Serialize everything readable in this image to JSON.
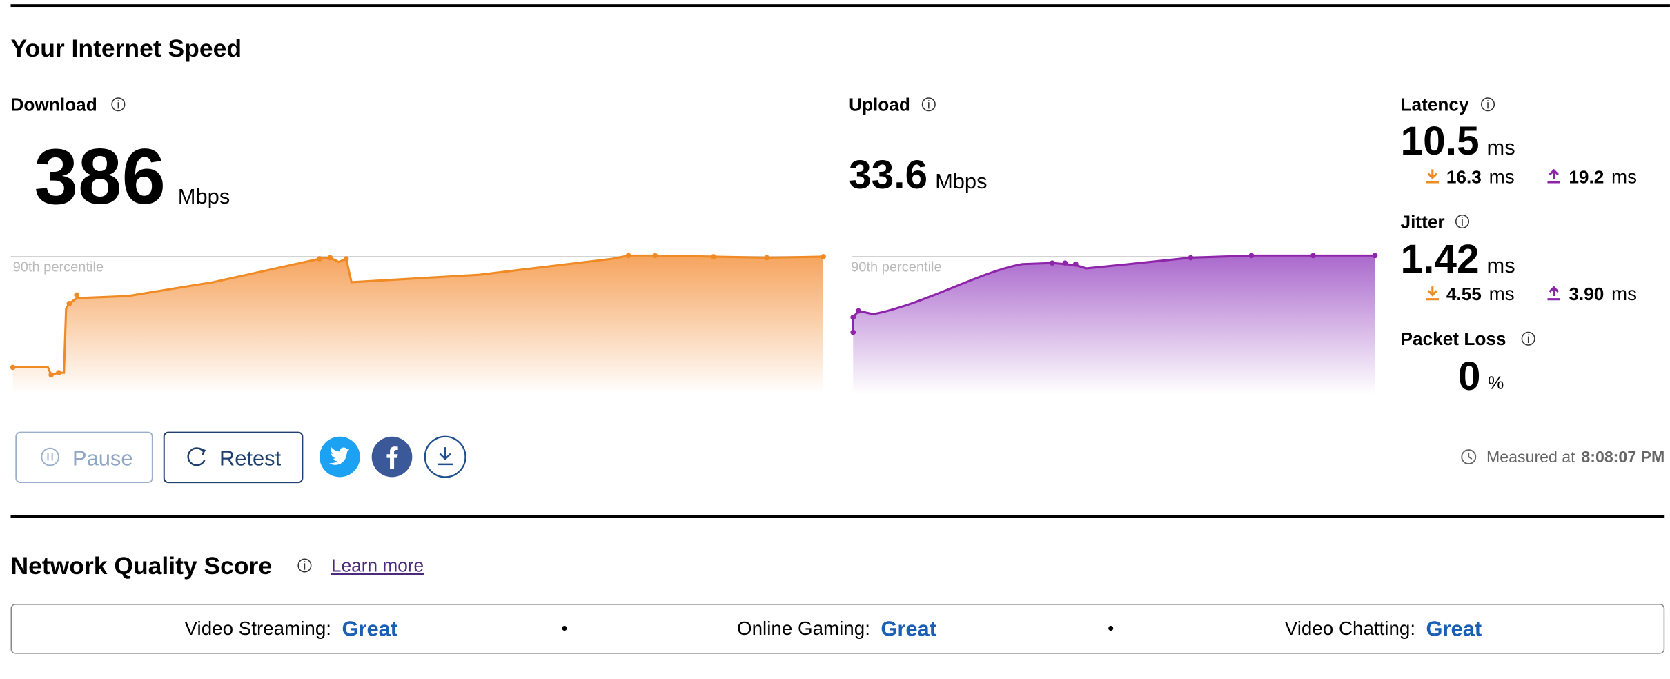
{
  "header": {
    "title": "Your Internet Speed"
  },
  "download": {
    "label": "Download",
    "value": "386",
    "unit": "Mbps",
    "percentile_label": "90th percentile"
  },
  "upload": {
    "label": "Upload",
    "value": "33.6",
    "unit": "Mbps",
    "percentile_label": "90th percentile"
  },
  "latency": {
    "label": "Latency",
    "value": "10.5",
    "unit": "ms",
    "download": "16.3",
    "download_unit": "ms",
    "upload": "19.2",
    "upload_unit": "ms"
  },
  "jitter": {
    "label": "Jitter",
    "value": "1.42",
    "unit": "ms",
    "download": "4.55",
    "download_unit": "ms",
    "upload": "3.90",
    "upload_unit": "ms"
  },
  "packet_loss": {
    "label": "Packet Loss",
    "value": "0",
    "unit": "%"
  },
  "buttons": {
    "pause": "Pause",
    "retest": "Retest"
  },
  "measured": {
    "label": "Measured at",
    "time": "8:08:07 PM"
  },
  "quality": {
    "title": "Network Quality Score",
    "link": "Learn more",
    "items": [
      {
        "label": "Video Streaming:",
        "rating": "Great"
      },
      {
        "label": "Online Gaming:",
        "rating": "Great"
      },
      {
        "label": "Video Chatting:",
        "rating": "Great"
      }
    ]
  }
}
